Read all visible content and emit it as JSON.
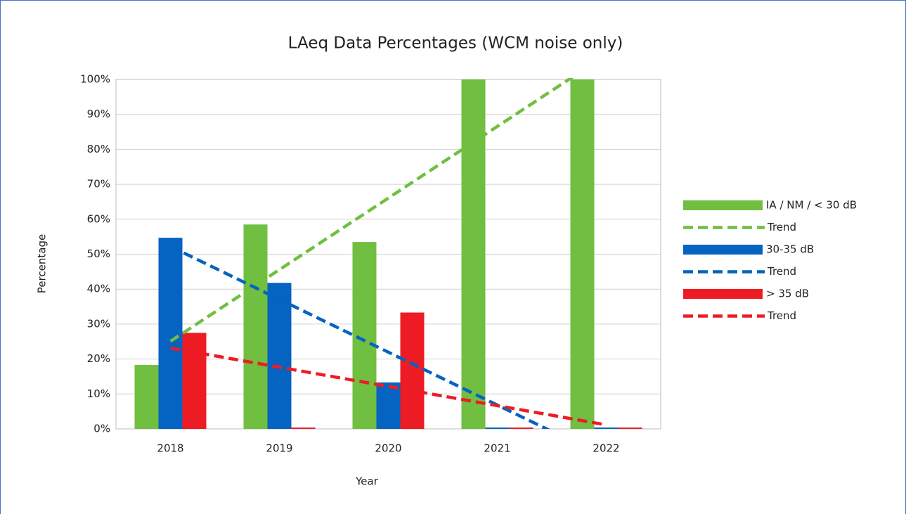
{
  "chart_data": {
    "type": "bar",
    "title": "LAeq Data Percentages (WCM noise only)",
    "x_label": "Year",
    "y_label": "Percentage",
    "categories": [
      "2018",
      "2019",
      "2020",
      "2021",
      "2022"
    ],
    "series": [
      {
        "name": "IA / NM / < 30 dB",
        "color": "#70bf41",
        "values": [
          18.3,
          58.5,
          53.5,
          100,
          100
        ],
        "trendline": {
          "name": "Trend"
        }
      },
      {
        "name": "30-35 dB",
        "color": "#0563c1",
        "values": [
          54.7,
          41.8,
          13.3,
          0,
          0
        ],
        "trendline": {
          "name": "Trend"
        }
      },
      {
        "name": "> 35 dB",
        "color": "#ed1c24",
        "values": [
          27.5,
          0,
          33.3,
          0,
          0
        ],
        "trendline": {
          "name": "Trend"
        }
      }
    ],
    "ylim": [
      0,
      100
    ],
    "yticks": [
      {
        "value": 0,
        "label": "0%"
      },
      {
        "value": 10,
        "label": "10%"
      },
      {
        "value": 20,
        "label": "20%"
      },
      {
        "value": 30,
        "label": "30%"
      },
      {
        "value": 40,
        "label": "40%"
      },
      {
        "value": 50,
        "label": "50%"
      },
      {
        "value": 60,
        "label": "60%"
      },
      {
        "value": 70,
        "label": "70%"
      },
      {
        "value": 80,
        "label": "80%"
      },
      {
        "value": 90,
        "label": "90%"
      },
      {
        "value": 100,
        "label": "100%"
      }
    ],
    "grid": true,
    "legend": "right"
  }
}
